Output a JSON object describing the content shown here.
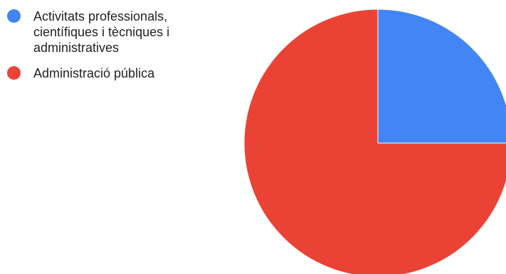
{
  "chart_data": {
    "type": "pie",
    "title": "",
    "legend_position": "left",
    "slices": [
      {
        "label": "Activitats professionals, científiques i tècniques i administratives",
        "value": 25,
        "color": "#4285f4"
      },
      {
        "label": "Administració pública",
        "value": 75,
        "color": "#ea4335"
      }
    ]
  }
}
